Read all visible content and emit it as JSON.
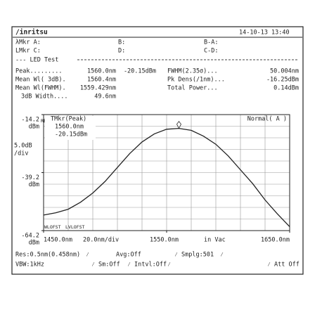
{
  "header": {
    "logo": "/inritsu",
    "datetime": "14-10-13 13:40"
  },
  "markers": {
    "wl_a": "λMkr A:",
    "b": "B:",
    "b_a": "B-A:",
    "lv_c": "LMkr C:",
    "d": "D:",
    "c_d": "C-D:"
  },
  "led_test": {
    "title": "--- LED Test",
    "rows": [
      [
        "Peak.........",
        "1560.0nm",
        "-20.15dBm",
        "FWHM(2.35σ)...",
        "50.004nm"
      ],
      [
        "Mean Wl( 3dB).",
        "1560.4nm",
        "Pk Dens(/1nm)...",
        "-16.25dBm"
      ],
      [
        "Mean Wl(FWHM).",
        "1559.429nm",
        "Total Power...",
        "0.14dBm"
      ],
      [
        "3dB Width....",
        "49.6nm"
      ]
    ]
  },
  "chart_data": {
    "type": "line",
    "x": [
      1450,
      1460,
      1470,
      1480,
      1490,
      1500,
      1510,
      1520,
      1530,
      1540,
      1550,
      1560,
      1570,
      1580,
      1590,
      1600,
      1610,
      1620,
      1630,
      1640,
      1650
    ],
    "values": [
      -57.5,
      -56.5,
      -55,
      -52,
      -48,
      -43,
      -37,
      -31,
      -26,
      -22.5,
      -20.5,
      -20.15,
      -21,
      -23.5,
      -27,
      -32,
      -38,
      -44,
      -51,
      -57,
      -62.5
    ],
    "color": "#222222",
    "xlim": [
      1450,
      1650
    ],
    "xticks": [
      {
        "value": 1450,
        "label": "1450.0nm"
      },
      {
        "value": 1550,
        "label": "1550.0nm"
      },
      {
        "value": 1650,
        "label": "1650.0nm"
      }
    ],
    "ylim": [
      -64.2,
      -14.2
    ],
    "yticks": [
      -14.2,
      -39.2,
      -64.2
    ],
    "y_unit": "dBm",
    "ref_label": "REF",
    "y_scale": "5.0dB",
    "y_scale_unit": "/div",
    "x_scale": "20.0nm/div",
    "x_note": "in Vac",
    "mode": "Normal( A )",
    "marker": {
      "label": "TMkr(Peak)",
      "x": 1560,
      "y": -20.15,
      "x_label": "1560.0nm",
      "y_label": "-20.15dBm"
    },
    "offset_labels": [
      "WLOFST",
      "LVLOFST"
    ]
  },
  "footer": {
    "res": "Res:0.5nm(0.458nm)",
    "avg": "Avg:Off",
    "smplg": "Smplg:501",
    "vbw": "VBW:1kHz",
    "sm": "Sm:Off",
    "intvl": "Intvl:Off",
    "att": "Att Off",
    "separator": "⁄"
  }
}
